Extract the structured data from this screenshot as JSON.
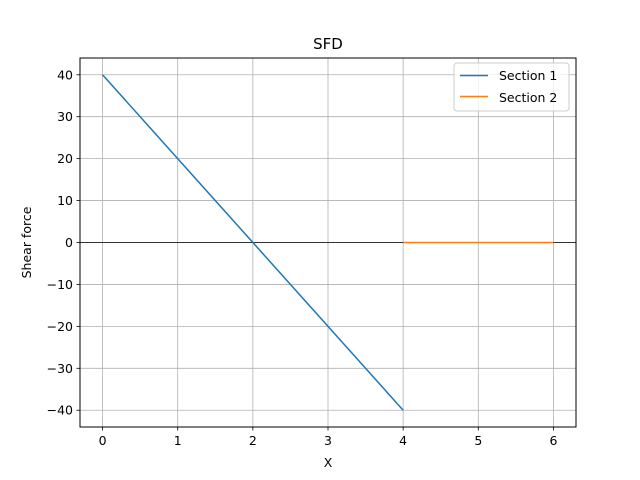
{
  "chart_data": {
    "type": "line",
    "title": "SFD",
    "xlabel": "X",
    "ylabel": "Shear force",
    "xlim": [
      -0.3,
      6.3
    ],
    "ylim": [
      -44,
      44
    ],
    "xticks": [
      0,
      1,
      2,
      3,
      4,
      5,
      6
    ],
    "xtick_labels": [
      "0",
      "1",
      "2",
      "3",
      "4",
      "5",
      "6"
    ],
    "yticks": [
      -40,
      -30,
      -20,
      -10,
      0,
      10,
      20,
      30,
      40
    ],
    "ytick_labels": [
      "−40",
      "−30",
      "−20",
      "−10",
      "0",
      "10",
      "20",
      "30",
      "40"
    ],
    "grid": true,
    "zero_line": true,
    "legend_position": "top-right",
    "series": [
      {
        "name": "Section 1",
        "color": "#1f77b4",
        "x": [
          0,
          4
        ],
        "y": [
          40,
          -40
        ]
      },
      {
        "name": "Section 2",
        "color": "#ff7f0e",
        "x": [
          4,
          6
        ],
        "y": [
          0,
          0
        ]
      }
    ]
  }
}
